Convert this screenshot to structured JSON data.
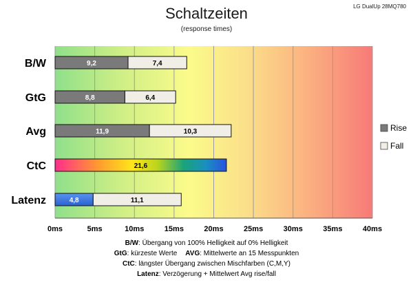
{
  "header": {
    "title": "Schaltzeiten",
    "subtitle": "(response times)",
    "model": "LG DualUp 28MQ780"
  },
  "chart_data": {
    "type": "bar",
    "orientation": "horizontal",
    "stacked": true,
    "categories": [
      "B/W",
      "GtG",
      "Avg",
      "CtC",
      "Latenz"
    ],
    "series": [
      {
        "name": "Rise",
        "values": [
          9.2,
          8.8,
          11.9,
          null,
          null
        ]
      },
      {
        "name": "Fall",
        "values": [
          7.4,
          6.4,
          10.3,
          null,
          11.1
        ]
      }
    ],
    "special": [
      {
        "category": "CtC",
        "value": 21.6,
        "fill": "rainbow"
      },
      {
        "category": "Latenz",
        "value": 4.8,
        "fill": "blue"
      }
    ],
    "xlim": [
      0,
      40
    ],
    "xticks": [
      "0ms",
      "5ms",
      "10ms",
      "15ms",
      "20ms",
      "25ms",
      "30ms",
      "35ms",
      "40ms"
    ],
    "xtick_values": [
      0,
      5,
      10,
      15,
      20,
      25,
      30,
      35,
      40
    ],
    "legend_position": "right",
    "grid": true,
    "background": "gradient-green-yellow-red"
  },
  "colors": {
    "rise": "#7a7a7a",
    "fall": "#f0eee6",
    "latenz": "#3f78e0"
  },
  "legend": {
    "rise_label": "Rise",
    "fall_label": "Fall"
  },
  "notes": [
    {
      "key": "B/W",
      "text": ":  Übergang von 100% Helligkeit auf 0% Helligkeit"
    },
    {
      "key": "GtG",
      "text": ": kürzeste  Werte",
      "key2": "AVG",
      "text2": ": Mittelwerte  an 15 Messpunkten"
    },
    {
      "key": "CtC",
      "text": ": längster Übergang  zwischen Mischfarben  (C,M,Y)"
    },
    {
      "key": "Latenz",
      "text": ": Verzögerung  + Mittelwert  Avg rise/fall"
    }
  ]
}
